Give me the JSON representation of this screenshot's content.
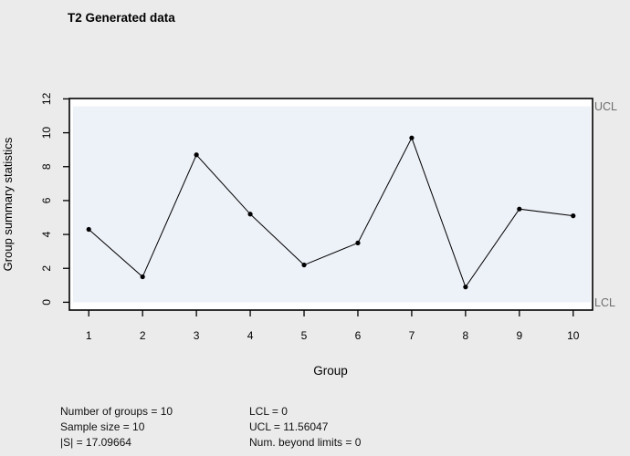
{
  "chart_data": {
    "type": "line",
    "title": "T2 Generated data",
    "xlabel": "Group",
    "ylabel": "Group summary statistics",
    "categories": [
      1,
      2,
      3,
      4,
      5,
      6,
      7,
      8,
      9,
      10
    ],
    "values": [
      4.3,
      1.5,
      8.7,
      5.2,
      2.2,
      3.5,
      9.7,
      0.9,
      5.5,
      5.1
    ],
    "ucl": 11.56047,
    "lcl": 0,
    "ucl_label": "UCL",
    "lcl_label": "LCL",
    "yticks": [
      0,
      2,
      4,
      6,
      8,
      10,
      12
    ],
    "ylim": [
      0,
      12
    ],
    "grid": false,
    "legend": "none",
    "marker": "filled-circle",
    "line_color": "#000000",
    "band_color": "#edf1f8"
  },
  "stats": {
    "left": [
      "Number of groups = 10",
      "Sample size = 10",
      "|S| = 17.09664"
    ],
    "right": [
      "LCL = 0",
      "UCL = 11.56047",
      "Num. beyond limits = 0"
    ]
  },
  "colors": {
    "figure_bg": "#ebebeb",
    "plot_bg": "#ffffff",
    "band": "#edf1f8",
    "axis": "#000000",
    "limit_label": "#6e6e6e"
  }
}
